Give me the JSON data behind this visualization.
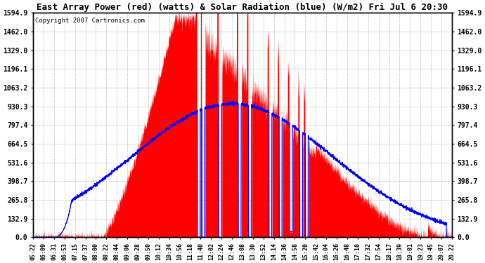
{
  "title": "East Array Power (red) (watts) & Solar Radiation (blue) (W/m2) Fri Jul 6 20:30",
  "copyright": "Copyright 2007 Cartronics.com",
  "background_color": "#ffffff",
  "plot_bg_color": "#ffffff",
  "grid_color": "#aaaaaa",
  "y_max": 1594.9,
  "y_ticks": [
    0.0,
    132.9,
    265.8,
    398.7,
    531.6,
    664.5,
    797.4,
    930.3,
    1063.2,
    1196.1,
    1329.0,
    1462.0,
    1594.9
  ],
  "y_tick_labels": [
    "0.0",
    "132.9",
    "265.8",
    "398.7",
    "531.6",
    "664.5",
    "797.4",
    "930.3",
    "1063.2",
    "1196.1",
    "1329.0",
    "1462.0",
    "1594.9"
  ],
  "red_fill_color": "#ff0000",
  "blue_line_color": "#0000ff",
  "x_labels": [
    "05:22",
    "06:09",
    "06:31",
    "06:53",
    "07:15",
    "07:37",
    "08:00",
    "08:22",
    "08:44",
    "09:06",
    "09:28",
    "09:50",
    "10:12",
    "10:34",
    "10:56",
    "11:18",
    "11:40",
    "12:02",
    "12:24",
    "12:46",
    "13:08",
    "13:30",
    "13:52",
    "14:14",
    "14:36",
    "14:58",
    "15:20",
    "15:42",
    "16:04",
    "16:26",
    "16:48",
    "17:10",
    "17:32",
    "17:54",
    "18:17",
    "18:39",
    "19:01",
    "19:23",
    "19:45",
    "20:07",
    "20:22"
  ]
}
